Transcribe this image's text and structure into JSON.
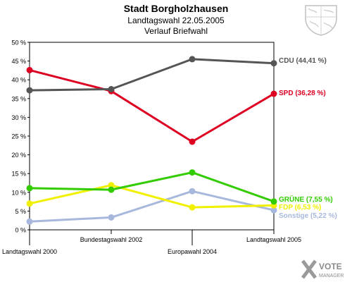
{
  "header": {
    "title": "Stadt Borgholzhausen",
    "subtitle": "Landtagswahl 22.05.2005",
    "subtitle2": "Verlauf Briefwahl"
  },
  "logo": {
    "line1": "VOTE",
    "line2": "MANAGER"
  },
  "chart_data": {
    "type": "line",
    "categories": [
      "Landtagswahl 2000",
      "Bundestagswahl 2002",
      "Europawahl 2004",
      "Landtagswahl 2005"
    ],
    "ylim": [
      0,
      50
    ],
    "yticks": [
      "0 %",
      "5 %",
      "10 %",
      "15 %",
      "20 %",
      "25 %",
      "30 %",
      "35 %",
      "40 %",
      "45 %",
      "50 %"
    ],
    "grid": false,
    "legend": "labels at end of lines",
    "series": [
      {
        "name": "Sonstige",
        "label": "Sonstige (5,22 %)",
        "color": "#a8b8dc",
        "values": [
          2.2,
          3.3,
          10.3,
          5.22
        ]
      },
      {
        "name": "FDP",
        "label": "FDP (6,53 %)",
        "color": "#f0f000",
        "values": [
          7.0,
          11.9,
          6.0,
          6.53
        ]
      },
      {
        "name": "GRÜNE",
        "label": "GRÜNE (7,55 %)",
        "color": "#33cc00",
        "values": [
          11.1,
          10.7,
          15.3,
          7.55
        ]
      },
      {
        "name": "SPD",
        "label": "SPD (36,28 %)",
        "color": "#dd0022",
        "values": [
          42.6,
          37.0,
          23.5,
          36.28
        ]
      },
      {
        "name": "CDU",
        "label": "CDU (44,41 %)",
        "color": "#555555",
        "values": [
          37.2,
          37.5,
          45.5,
          44.41
        ]
      }
    ]
  }
}
